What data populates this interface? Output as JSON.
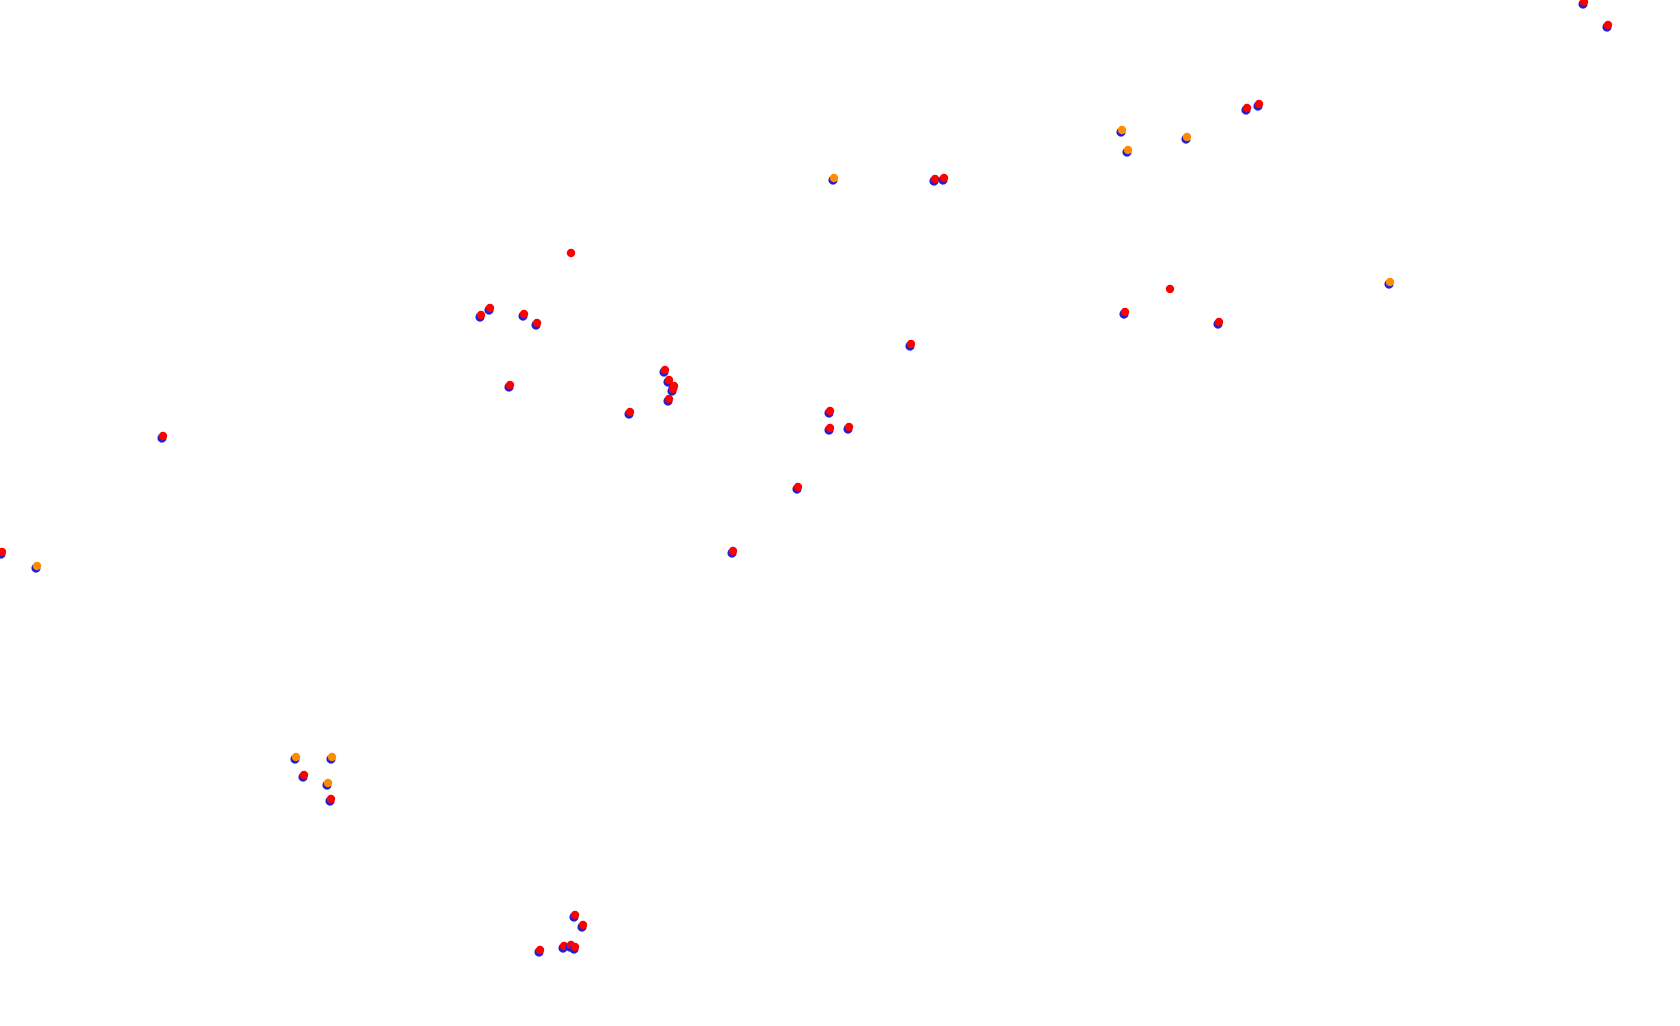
{
  "colors": {
    "background": "#ffffff",
    "blue": "#1f1fd6",
    "red": "#ff0000",
    "orange": "#ff8c00"
  },
  "marker_types": [
    "red-on-blue",
    "orange-on-blue",
    "red"
  ]
}
